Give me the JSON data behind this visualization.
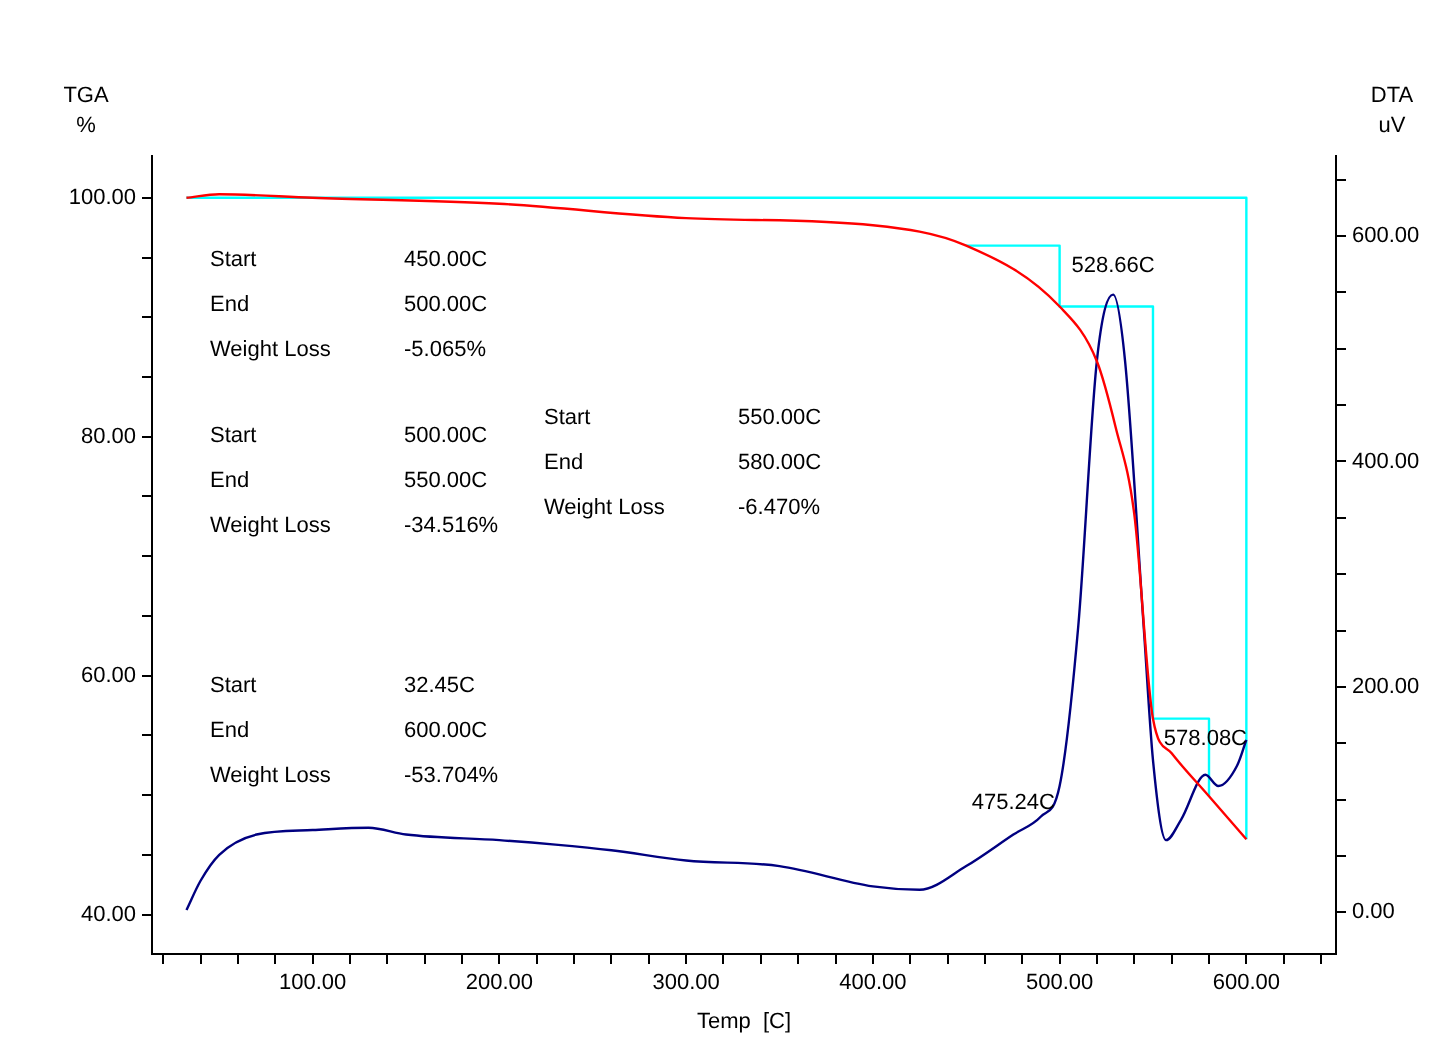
{
  "chart_data": {
    "type": "line",
    "xlabel": "Temp  [C]",
    "ylabel": "TGA %",
    "y2label": "DTA uV",
    "xlim": [
      14,
      648
    ],
    "ylim": [
      36.7,
      103.5
    ],
    "y2lim": [
      -37,
      671
    ],
    "xticks": [
      {
        "value": 20,
        "label": null
      },
      {
        "value": 40,
        "label": null
      },
      {
        "value": 60,
        "label": null
      },
      {
        "value": 80,
        "label": null
      },
      {
        "value": 100,
        "label": "100.00"
      },
      {
        "value": 120,
        "label": null
      },
      {
        "value": 140,
        "label": null
      },
      {
        "value": 160,
        "label": null
      },
      {
        "value": 180,
        "label": null
      },
      {
        "value": 200,
        "label": "200.00"
      },
      {
        "value": 220,
        "label": null
      },
      {
        "value": 240,
        "label": null
      },
      {
        "value": 260,
        "label": null
      },
      {
        "value": 280,
        "label": null
      },
      {
        "value": 300,
        "label": "300.00"
      },
      {
        "value": 320,
        "label": null
      },
      {
        "value": 340,
        "label": null
      },
      {
        "value": 360,
        "label": null
      },
      {
        "value": 380,
        "label": null
      },
      {
        "value": 400,
        "label": "400.00"
      },
      {
        "value": 420,
        "label": null
      },
      {
        "value": 440,
        "label": null
      },
      {
        "value": 460,
        "label": null
      },
      {
        "value": 480,
        "label": null
      },
      {
        "value": 500,
        "label": "500.00"
      },
      {
        "value": 520,
        "label": null
      },
      {
        "value": 540,
        "label": null
      },
      {
        "value": 560,
        "label": null
      },
      {
        "value": 580,
        "label": null
      },
      {
        "value": 600,
        "label": "600.00"
      },
      {
        "value": 620,
        "label": null
      },
      {
        "value": 640,
        "label": null
      }
    ],
    "yticks": [
      {
        "value": 40,
        "label": "40.00"
      },
      {
        "value": 45,
        "label": null
      },
      {
        "value": 50,
        "label": null
      },
      {
        "value": 55,
        "label": null
      },
      {
        "value": 60,
        "label": "60.00"
      },
      {
        "value": 65,
        "label": null
      },
      {
        "value": 70,
        "label": null
      },
      {
        "value": 75,
        "label": null
      },
      {
        "value": 80,
        "label": "80.00"
      },
      {
        "value": 85,
        "label": null
      },
      {
        "value": 90,
        "label": null
      },
      {
        "value": 95,
        "label": null
      },
      {
        "value": 100,
        "label": "100.00"
      }
    ],
    "y2ticks": [
      {
        "value": 0,
        "label": "0.00"
      },
      {
        "value": 50,
        "label": null
      },
      {
        "value": 100,
        "label": null
      },
      {
        "value": 150,
        "label": null
      },
      {
        "value": 200,
        "label": "200.00"
      },
      {
        "value": 250,
        "label": null
      },
      {
        "value": 300,
        "label": null
      },
      {
        "value": 350,
        "label": null
      },
      {
        "value": 400,
        "label": "400.00"
      },
      {
        "value": 450,
        "label": null
      },
      {
        "value": 500,
        "label": null
      },
      {
        "value": 550,
        "label": null
      },
      {
        "value": 600,
        "label": "600.00"
      },
      {
        "value": 650,
        "label": null
      }
    ],
    "series": [
      {
        "color": "#ff0000",
        "x": [
          32.45,
          50,
          100,
          200,
          300,
          400,
          450,
          500,
          520,
          530,
          540,
          550,
          560,
          580,
          600
        ],
        "values": [
          100,
          100.3,
          100,
          99.5,
          98.3,
          97.7,
          96.0,
          90.9,
          86.3,
          80.8,
          73.5,
          56.4,
          53.5,
          49.9,
          46.3
        ]
      },
      {
        "color": "#000080",
        "axis": "y2",
        "x": [
          32.45,
          40,
          50,
          70,
          100,
          130,
          150,
          200,
          230,
          260,
          300,
          350,
          400,
          425,
          450,
          475.24,
          490,
          500,
          510,
          520,
          528.66,
          535,
          545,
          550,
          557,
          565,
          578.08,
          585,
          595,
          600
        ],
        "values": [
          2,
          28,
          51,
          69,
          73,
          75,
          69,
          64,
          60,
          55,
          46,
          41,
          23,
          20,
          41,
          69,
          85,
          112,
          254,
          490,
          548,
          490,
          254,
          135,
          64,
          82,
          122,
          112,
          130,
          153
        ]
      },
      {
        "color": "#00ffff",
        "x": [
          32.45,
          600,
          600
        ],
        "values": [
          100,
          100,
          46.3
        ]
      },
      {
        "color": "#00ffff",
        "x": [
          450,
          500,
          500,
          550,
          550,
          580,
          580
        ],
        "values": [
          96.0,
          96.0,
          90.9,
          90.9,
          56.4,
          56.4,
          49.9
        ]
      }
    ],
    "annotations": [
      "Start",
      "450.00C",
      "End",
      "500.00C",
      "Weight Loss",
      "-5.065%",
      "Start",
      "500.00C",
      "End",
      "550.00C",
      "Weight Loss",
      "-34.516%",
      "Start",
      "550.00C",
      "End",
      "580.00C",
      "Weight Loss",
      "-6.470%",
      "Start",
      "32.45C",
      "End",
      "600.00C",
      "Weight Loss",
      "-53.704%",
      {
        "text": "528.66C",
        "x": 528.66,
        "y": 91.8
      },
      {
        "text": "475.24C",
        "x": 475.24,
        "y": 46.8
      },
      {
        "text": "578.08C",
        "x": 578.08,
        "y": 52.2
      }
    ]
  }
}
